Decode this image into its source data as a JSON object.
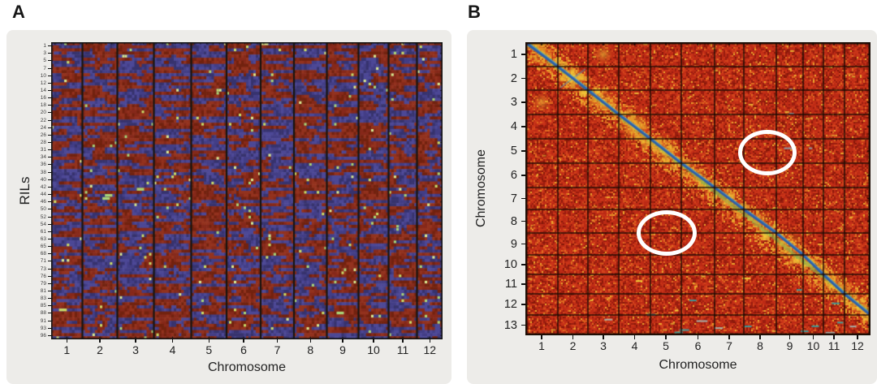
{
  "figure": {
    "background": "#ffffff",
    "panel_background": "#edece9"
  },
  "panels": {
    "a": {
      "letter": "A",
      "y_axis": {
        "title": "RILs",
        "tick_labels": [
          "1",
          "3",
          "5",
          "7",
          "10",
          "12",
          "14",
          "16",
          "18",
          "20",
          "22",
          "24",
          "26",
          "28",
          "31",
          "34",
          "36",
          "38",
          "40",
          "42",
          "44",
          "46",
          "50",
          "52",
          "54",
          "61",
          "63",
          "65",
          "68",
          "71",
          "73",
          "76",
          "79",
          "81",
          "83",
          "85",
          "88",
          "91",
          "93",
          "96"
        ]
      },
      "x_axis": {
        "title": "Chromosome",
        "tick_labels": [
          "1",
          "2",
          "3",
          "4",
          "5",
          "6",
          "7",
          "8",
          "9",
          "10",
          "11",
          "12"
        ]
      }
    },
    "b": {
      "letter": "B",
      "y_axis": {
        "title": "Chromosome",
        "tick_labels": [
          "1",
          "2",
          "3",
          "4",
          "5",
          "6",
          "7",
          "8",
          "9",
          "10",
          "11",
          "12",
          "13"
        ]
      },
      "x_axis": {
        "title": "Chromosome",
        "tick_labels": [
          "1",
          "2",
          "3",
          "4",
          "5",
          "6",
          "7",
          "8",
          "9",
          "10",
          "11",
          "12"
        ]
      },
      "annotations": [
        {
          "shape": "ellipse",
          "color": "#ffffff",
          "row": 5,
          "cols": "8-9",
          "meaning": "circled off-diagonal linkage region"
        },
        {
          "shape": "ellipse",
          "color": "#ffffff",
          "row": 8,
          "cols": "5",
          "meaning": "circled off-diagonal linkage region"
        }
      ]
    }
  },
  "chart_data": [
    {
      "id": "panel-a",
      "type": "heatmap",
      "title": "",
      "xlabel": "Chromosome",
      "ylabel": "RILs",
      "x_categories": [
        "1",
        "2",
        "3",
        "4",
        "5",
        "6",
        "7",
        "8",
        "9",
        "10",
        "11",
        "12"
      ],
      "y_tick_labels": [
        "1",
        "3",
        "5",
        "7",
        "10",
        "12",
        "14",
        "16",
        "18",
        "20",
        "22",
        "24",
        "26",
        "28",
        "31",
        "34",
        "36",
        "38",
        "40",
        "42",
        "44",
        "46",
        "50",
        "52",
        "54",
        "61",
        "63",
        "65",
        "68",
        "71",
        "73",
        "76",
        "79",
        "81",
        "83",
        "85",
        "88",
        "91",
        "93",
        "96"
      ],
      "n_rows": 96,
      "description": "Genotype bitmap of ~96 recombinant inbred lines (rows) across 12 chromosomes (columns, separated by black lines). Dark red = one parental allele, indigo blue = other parental allele, scattered yellow-green cells = heterozygous/missing calls.",
      "col_weights": [
        38.5,
        43,
        45,
        46,
        43.5,
        42,
        41,
        40.5,
        39,
        37,
        35,
        31.5
      ],
      "seed": 42,
      "palette": {
        "red": "#86291a",
        "red_dark": "#72220f",
        "red_lite": "#93321e",
        "blue": "#433e86",
        "blue_dark": "#37336e",
        "blue_lite": "#4d4896",
        "green": "#c8dc68",
        "green_lite": "#a8d478",
        "green_pale": "#d8e890",
        "separator": "#181410",
        "border": "#141414"
      }
    },
    {
      "id": "panel-b",
      "type": "heatmap",
      "title": "",
      "xlabel": "Chromosome",
      "ylabel": "Chromosome",
      "x_categories": [
        "1",
        "2",
        "3",
        "4",
        "5",
        "6",
        "7",
        "8",
        "9",
        "10",
        "11",
        "12"
      ],
      "y_categories": [
        "1",
        "2",
        "3",
        "4",
        "5",
        "6",
        "7",
        "8",
        "9",
        "10",
        "11",
        "12",
        "13"
      ],
      "description": "Pairwise marker linkage heatmap (13 chromosome rows x 12 chromosome columns). Red background = unlinked, yellow/green halo along the main diagonal = strong linkage, continuous blue line = self-linkage diagonal running from chr1/chr1 to chr12/chr12; row 13 lies below the diagonal. Two white ellipses mark unexpected off-diagonal signals at (row 5, cols 8-9) and (row 8, col 5).",
      "col_weights": [
        40,
        37,
        38,
        39,
        38,
        41,
        36,
        40,
        33,
        25,
        26,
        32
      ],
      "row_weights": [
        30,
        29,
        30,
        30,
        30,
        30,
        27,
        29,
        27,
        24,
        24,
        26,
        25
      ],
      "diagonal": {
        "from_cell": [
          1,
          1
        ],
        "to_cell": [
          12,
          12
        ],
        "color": "#2e5fa8"
      },
      "seed": 7,
      "palette": {
        "dark": "#9a1d0f",
        "darker": "#871808",
        "base": "#bc2a15",
        "mid": "#c93418",
        "bright": "#d4451c",
        "orange": "#e06b20",
        "amber": "#eba52c",
        "yellow": "#f2ce3a",
        "green": "#7fb94e",
        "diag_blue": "#2e5fa8",
        "diag_lite": "#4e9ac0",
        "teal": "#3e9898",
        "grid": "#1a0c04",
        "annotation": "#ffffff"
      }
    }
  ]
}
